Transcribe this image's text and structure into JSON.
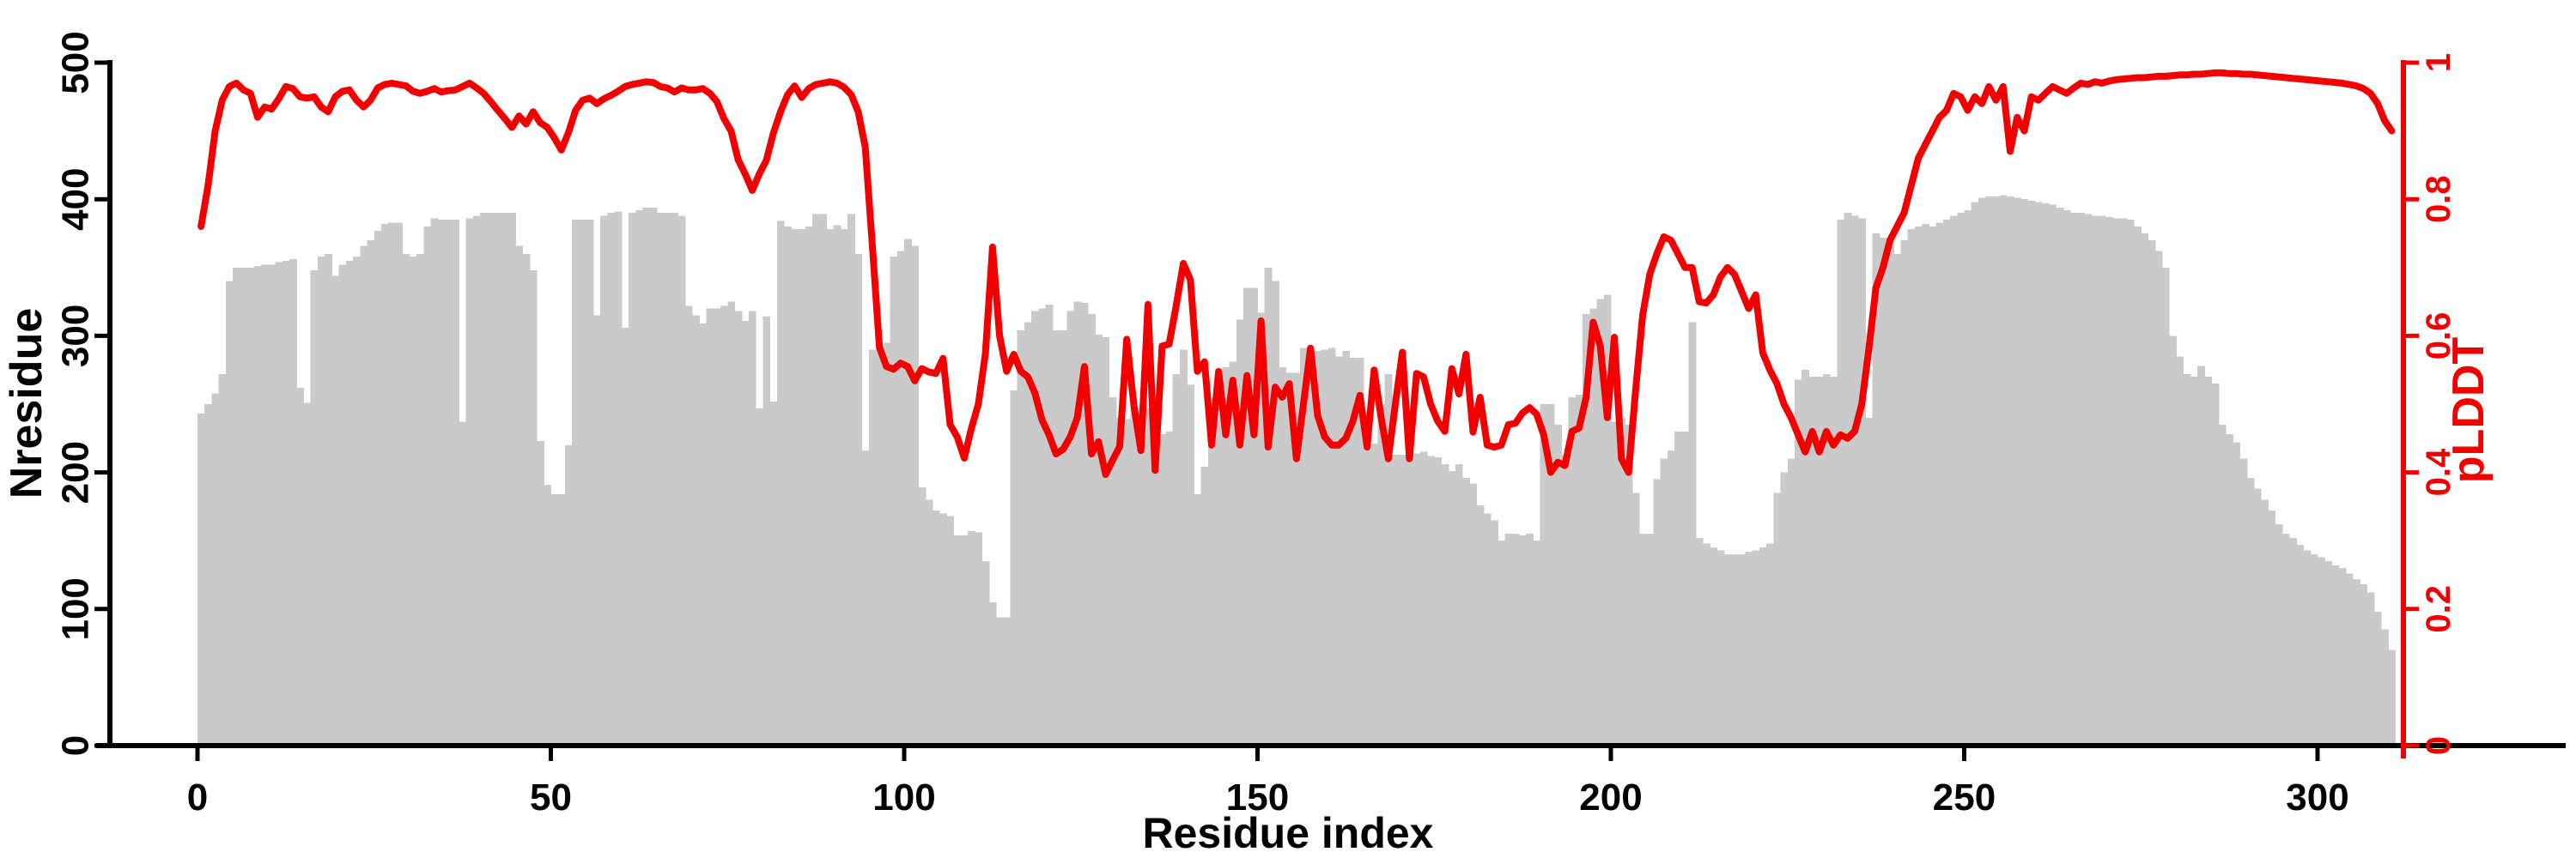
{
  "chart_data": {
    "type": "bar",
    "subtype": "dual-axis-bar-and-line",
    "title": "",
    "xlabel": "Residue index",
    "ylabel_left": "Nresidue",
    "ylabel_right": "pLDDT",
    "x_ticks": [
      0,
      50,
      100,
      150,
      200,
      250,
      300
    ],
    "y_left_ticks": [
      0,
      100,
      200,
      300,
      400,
      500
    ],
    "y_right_ticks": [
      0,
      0.2,
      0.4,
      0.6,
      0.8,
      1
    ],
    "y_left_range": [
      0,
      500
    ],
    "y_right_range": [
      0,
      1
    ],
    "x_range": [
      0,
      311
    ],
    "grid": false,
    "legend": "none",
    "bar_color": "#cacaca",
    "line_color": "#f20000",
    "axis_color": "#000000",
    "right_axis_color": "#f20000",
    "x_start": 0,
    "x_step": 1,
    "series": [
      {
        "name": "Nresidue",
        "axis": "left",
        "render": "bar",
        "values": [
          243,
          250,
          258,
          272,
          340,
          350,
          350,
          350,
          351,
          352,
          352,
          354,
          355,
          356,
          262,
          251,
          348,
          358,
          360,
          344,
          352,
          355,
          358,
          366,
          370,
          377,
          382,
          383,
          383,
          360,
          358,
          360,
          380,
          386,
          385,
          385,
          385,
          237,
          386,
          388,
          390,
          390,
          390,
          390,
          390,
          366,
          360,
          348,
          223,
          191,
          184,
          184,
          220,
          385,
          385,
          385,
          315,
          388,
          390,
          391,
          306,
          390,
          392,
          394,
          394,
          390,
          390,
          390,
          388,
          322,
          315,
          309,
          320,
          320,
          322,
          325,
          318,
          311,
          318,
          247,
          314,
          252,
          384,
          380,
          378,
          378,
          380,
          389,
          389,
          378,
          381,
          378,
          389,
          360,
          216,
          290,
          292,
          295,
          358,
          362,
          371,
          366,
          189,
          180,
          172,
          170,
          168,
          154,
          154,
          157,
          156,
          135,
          105,
          94,
          94,
          260,
          304,
          310,
          318,
          320,
          323,
          304,
          304,
          318,
          325,
          324,
          316,
          301,
          299,
          255,
          240,
          239,
          254,
          246,
          247,
          240,
          228,
          230,
          272,
          290,
          264,
          184,
          204,
          220,
          243,
          277,
          281,
          312,
          335,
          335,
          317,
          350,
          340,
          277,
          273,
          273,
          291,
          289,
          289,
          290,
          291,
          285,
          289,
          284,
          284,
          220,
          221,
          250,
          272,
          213,
          213,
          213,
          214,
          215,
          212,
          211,
          206,
          201,
          206,
          196,
          192,
          176,
          170,
          165,
          150,
          155,
          155,
          154,
          155,
          150,
          250,
          250,
          235,
          213,
          255,
          257,
          316,
          320,
          327,
          330,
          237,
          240,
          235,
          185,
          155,
          155,
          195,
          210,
          216,
          230,
          230,
          310,
          152,
          148,
          145,
          143,
          140,
          140,
          140,
          142,
          143,
          145,
          148,
          185,
          200,
          210,
          268,
          275,
          270,
          270,
          272,
          270,
          385,
          390,
          388,
          386,
          240,
          375,
          372,
          368,
          360,
          370,
          378,
          380,
          382,
          380,
          383,
          385,
          388,
          390,
          392,
          398,
          401,
          402,
          402,
          403,
          402,
          401,
          400,
          399,
          398,
          397,
          396,
          394,
          392,
          390,
          390,
          389,
          388,
          388,
          387,
          386,
          386,
          385,
          380,
          375,
          370,
          362,
          350,
          300,
          285,
          272,
          270,
          278,
          270,
          265,
          235,
          228,
          222,
          210,
          196,
          188,
          180,
          172,
          162,
          155,
          152,
          147,
          143,
          140,
          138,
          135,
          132,
          130,
          126,
          122,
          118,
          112,
          98,
          85,
          70
        ]
      },
      {
        "name": "pLDDT",
        "axis": "right",
        "render": "line",
        "values": [
          0.76,
          0.82,
          0.9,
          0.945,
          0.965,
          0.97,
          0.96,
          0.955,
          0.92,
          0.935,
          0.932,
          0.947,
          0.965,
          0.962,
          0.95,
          0.948,
          0.95,
          0.935,
          0.928,
          0.95,
          0.958,
          0.96,
          0.945,
          0.935,
          0.945,
          0.963,
          0.968,
          0.97,
          0.968,
          0.966,
          0.958,
          0.955,
          0.958,
          0.962,
          0.957,
          0.959,
          0.96,
          0.965,
          0.97,
          0.963,
          0.955,
          0.943,
          0.93,
          0.918,
          0.905,
          0.922,
          0.91,
          0.928,
          0.912,
          0.905,
          0.89,
          0.872,
          0.898,
          0.93,
          0.945,
          0.948,
          0.94,
          0.947,
          0.952,
          0.958,
          0.965,
          0.968,
          0.97,
          0.972,
          0.971,
          0.965,
          0.963,
          0.957,
          0.963,
          0.96,
          0.96,
          0.962,
          0.955,
          0.943,
          0.918,
          0.9,
          0.858,
          0.837,
          0.813,
          0.837,
          0.857,
          0.897,
          0.928,
          0.953,
          0.966,
          0.949,
          0.962,
          0.968,
          0.97,
          0.972,
          0.97,
          0.964,
          0.953,
          0.928,
          0.876,
          0.731,
          0.583,
          0.555,
          0.551,
          0.56,
          0.555,
          0.534,
          0.552,
          0.547,
          0.545,
          0.567,
          0.47,
          0.452,
          0.421,
          0.464,
          0.5,
          0.574,
          0.73,
          0.6,
          0.548,
          0.573,
          0.548,
          0.54,
          0.516,
          0.477,
          0.455,
          0.427,
          0.434,
          0.452,
          0.48,
          0.555,
          0.427,
          0.445,
          0.397,
          0.418,
          0.438,
          0.595,
          0.498,
          0.432,
          0.646,
          0.403,
          0.585,
          0.588,
          0.645,
          0.706,
          0.682,
          0.548,
          0.562,
          0.44,
          0.548,
          0.455,
          0.535,
          0.44,
          0.542,
          0.455,
          0.622,
          0.437,
          0.525,
          0.51,
          0.53,
          0.42,
          0.5,
          0.582,
          0.483,
          0.452,
          0.44,
          0.44,
          0.45,
          0.475,
          0.513,
          0.437,
          0.55,
          0.48,
          0.42,
          0.5,
          0.576,
          0.42,
          0.545,
          0.54,
          0.5,
          0.475,
          0.46,
          0.552,
          0.515,
          0.573,
          0.459,
          0.51,
          0.44,
          0.437,
          0.44,
          0.47,
          0.472,
          0.487,
          0.495,
          0.485,
          0.455,
          0.4,
          0.415,
          0.41,
          0.46,
          0.465,
          0.51,
          0.62,
          0.585,
          0.48,
          0.598,
          0.42,
          0.4,
          0.52,
          0.63,
          0.69,
          0.72,
          0.745,
          0.74,
          0.72,
          0.7,
          0.7,
          0.65,
          0.648,
          0.66,
          0.686,
          0.7,
          0.69,
          0.665,
          0.64,
          0.66,
          0.575,
          0.55,
          0.53,
          0.5,
          0.48,
          0.455,
          0.43,
          0.46,
          0.43,
          0.46,
          0.44,
          0.455,
          0.45,
          0.46,
          0.5,
          0.58,
          0.67,
          0.7,
          0.74,
          0.76,
          0.78,
          0.82,
          0.86,
          0.88,
          0.9,
          0.92,
          0.93,
          0.955,
          0.95,
          0.93,
          0.95,
          0.94,
          0.965,
          0.945,
          0.965,
          0.87,
          0.92,
          0.9,
          0.95,
          0.945,
          0.955,
          0.965,
          0.96,
          0.955,
          0.963,
          0.97,
          0.968,
          0.972,
          0.97,
          0.973,
          0.975,
          0.976,
          0.977,
          0.978,
          0.978,
          0.979,
          0.98,
          0.98,
          0.981,
          0.982,
          0.982,
          0.983,
          0.983,
          0.984,
          0.985,
          0.985,
          0.984,
          0.984,
          0.983,
          0.983,
          0.982,
          0.981,
          0.98,
          0.979,
          0.978,
          0.977,
          0.976,
          0.975,
          0.974,
          0.973,
          0.972,
          0.971,
          0.97,
          0.968,
          0.966,
          0.962,
          0.955,
          0.94,
          0.915,
          0.9
        ]
      }
    ]
  }
}
